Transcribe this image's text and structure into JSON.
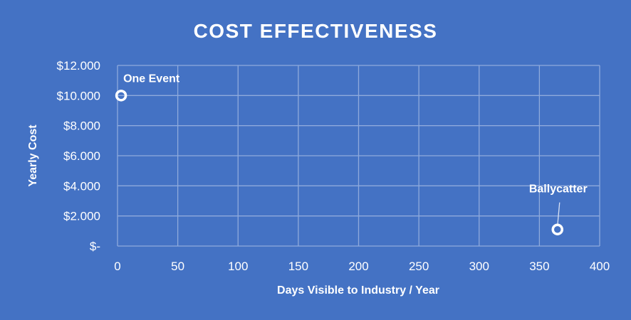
{
  "chart_data": {
    "type": "scatter",
    "title": "COST EFFECTIVENESS",
    "xlabel": "Days Visible to Industry / Year",
    "ylabel": "Yearly Cost",
    "xlim": [
      0,
      400
    ],
    "ylim": [
      0,
      12000
    ],
    "xticks": [
      0,
      50,
      100,
      150,
      200,
      250,
      300,
      350,
      400
    ],
    "xtick_labels": [
      "0",
      "50",
      "100",
      "150",
      "200",
      "250",
      "300",
      "350",
      "400"
    ],
    "yticks": [
      0,
      2000,
      4000,
      6000,
      8000,
      10000,
      12000
    ],
    "ytick_labels": [
      "$-",
      "$2.000",
      "$4.000",
      "$6.000",
      "$8.000",
      "$10.000",
      "$12.000"
    ],
    "grid": true,
    "points": [
      {
        "label": "One Event",
        "x": 3,
        "y": 10000
      },
      {
        "label": "Ballycatter",
        "x": 365,
        "y": 1100
      }
    ],
    "colors": {
      "background": "#4472C4",
      "grid": "#8FAADC",
      "marker": "#FFFFFF"
    }
  }
}
